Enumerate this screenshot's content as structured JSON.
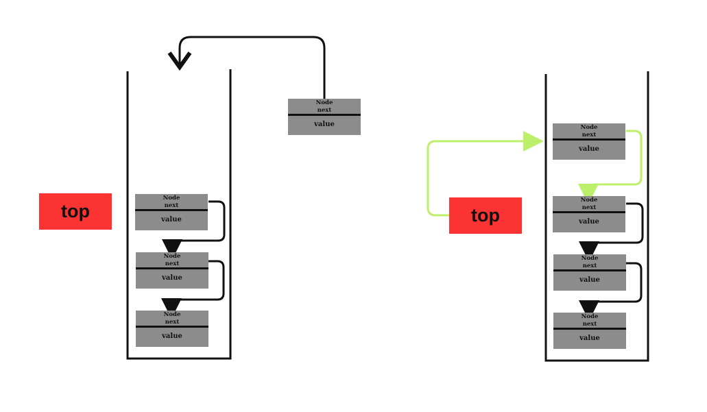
{
  "diagram": {
    "left_stack": {
      "top_label": "top",
      "incoming_node": {
        "title": "Node",
        "next": "next",
        "value": "value"
      },
      "nodes": [
        {
          "title": "Node",
          "next": "next",
          "value": "value"
        },
        {
          "title": "Node",
          "next": "next",
          "value": "value"
        },
        {
          "title": "Node",
          "next": "next",
          "value": "value"
        }
      ]
    },
    "right_stack": {
      "top_label": "top",
      "nodes": [
        {
          "title": "Node",
          "next": "next",
          "value": "value"
        },
        {
          "title": "Node",
          "next": "next",
          "value": "value"
        },
        {
          "title": "Node",
          "next": "next",
          "value": "value"
        },
        {
          "title": "Node",
          "next": "next",
          "value": "value"
        }
      ]
    },
    "colors": {
      "top_box": "#fc3333",
      "node_fill": "#8c8c8c",
      "arrow": "#111111",
      "top_pointer_arrow": "#bdf06a"
    }
  }
}
